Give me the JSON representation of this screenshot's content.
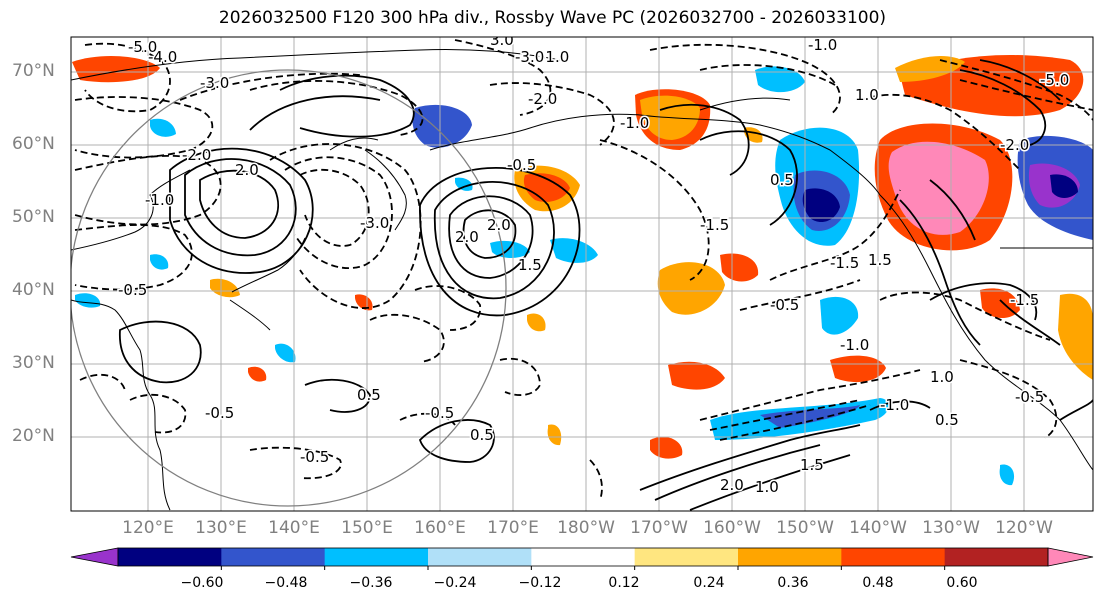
{
  "title": "2026032500 F120 300 hPa div., Rossby Wave PC (2026032700 - 2026033100)",
  "map": {
    "lat_labels": [
      "70°N",
      "60°N",
      "50°N",
      "40°N",
      "30°N",
      "20°N"
    ],
    "lon_labels": [
      "120°E",
      "130°E",
      "140°E",
      "150°E",
      "160°E",
      "170°E",
      "180°W",
      "170°W",
      "160°W",
      "150°W",
      "140°W",
      "130°W",
      "120°W"
    ],
    "contour_labels": [
      "-5.0",
      "-4.0",
      "-3.0",
      "-2.0",
      "-1.0",
      "-0.5",
      "-0.5",
      "-0.5",
      "-0.5",
      "-1.0",
      "-2.0",
      "-1.0",
      "-1.0",
      "-0.5",
      "-1.5",
      "-0.5",
      "-1.5",
      "-1.0",
      "2.0",
      "2.0",
      "1.5",
      "2.0",
      "0.5",
      "0.5",
      "1.5",
      "1.0",
      "0.5",
      "0.5",
      "-1.5",
      "-3.0",
      "-5.0",
      "3.0",
      "-3.0",
      "-2.0",
      "-1.0",
      "1.0",
      "1.5",
      "2.0",
      "1.0",
      "-0.5"
    ]
  },
  "colorbar": {
    "ticks": [
      "−0.60",
      "−0.48",
      "−0.36",
      "−0.24",
      "−0.12",
      "0.12",
      "0.24",
      "0.36",
      "0.48",
      "0.60"
    ],
    "colors": [
      "#9933cc",
      "#000080",
      "#3355cc",
      "#00bfff",
      "#b0e0f8",
      "#ffffff",
      "#ffe680",
      "#ffa500",
      "#ff4500",
      "#b22222",
      "#ff88b8"
    ]
  }
}
